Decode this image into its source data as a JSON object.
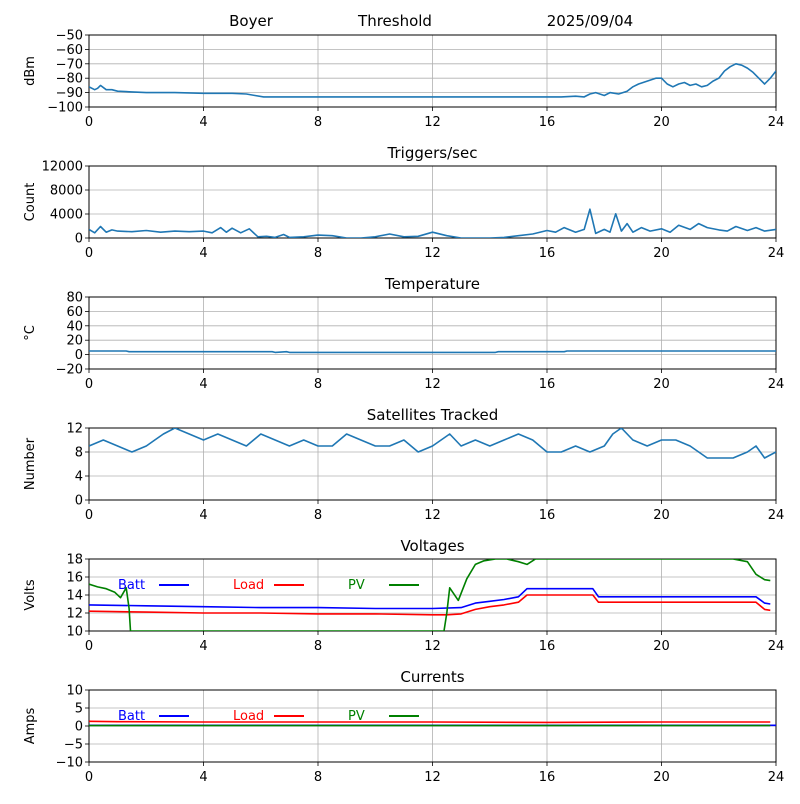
{
  "header": {
    "station": "Boyer",
    "mode": "Threshold",
    "date": "2025/09/04"
  },
  "chart_data": [
    {
      "type": "line",
      "title": "",
      "ylabel": "dBm",
      "xlabel": "",
      "xlim": [
        0,
        24
      ],
      "ylim": [
        -100,
        -50
      ],
      "xticks": [
        "0",
        "4",
        "8",
        "12",
        "16",
        "20",
        "24"
      ],
      "yticks": [
        "−100",
        "−90",
        "−80",
        "−70",
        "−60",
        "−50"
      ],
      "grid": true,
      "series": [
        {
          "color": "#1f77b4",
          "x": [
            0,
            0.2,
            0.3,
            0.4,
            0.6,
            0.8,
            1,
            1.5,
            2,
            3,
            4,
            5,
            5.5,
            5.8,
            6.1,
            7,
            8,
            10,
            12,
            14,
            16,
            16.5,
            17,
            17.3,
            17.5,
            17.7,
            18,
            18.2,
            18.5,
            18.8,
            19,
            19.2,
            19.5,
            19.8,
            20,
            20.2,
            20.4,
            20.6,
            20.8,
            21,
            21.2,
            21.4,
            21.6,
            21.8,
            22,
            22.2,
            22.4,
            22.6,
            22.8,
            23,
            23.2,
            23.4,
            23.6,
            23.8,
            24
          ],
          "y": [
            -86,
            -88,
            -87,
            -85,
            -88,
            -88,
            -89,
            -89.5,
            -90,
            -90,
            -90.5,
            -90.5,
            -91,
            -92,
            -93,
            -93,
            -93,
            -93,
            -93,
            -93,
            -93,
            -93,
            -92.5,
            -93,
            -91,
            -90,
            -92,
            -90,
            -91,
            -89,
            -86,
            -84,
            -82,
            -80,
            -80,
            -84,
            -86,
            -84,
            -83,
            -85,
            -84,
            -86,
            -85,
            -82,
            -80,
            -75,
            -72,
            -70,
            -71,
            -73,
            -76,
            -80,
            -84,
            -80,
            -75
          ]
        }
      ]
    },
    {
      "type": "line",
      "title": "Triggers/sec",
      "ylabel": "Count",
      "xlabel": "",
      "xlim": [
        0,
        24
      ],
      "ylim": [
        0,
        12500
      ],
      "xticks": [
        "0",
        "4",
        "8",
        "12",
        "16",
        "20",
        "24"
      ],
      "yticks": [
        "0",
        "4000",
        "8000",
        "12000"
      ],
      "grid": true,
      "series": [
        {
          "color": "#1f77b4",
          "x": [
            0,
            0.2,
            0.4,
            0.6,
            0.8,
            1,
            1.5,
            2,
            2.5,
            3,
            3.5,
            4,
            4.3,
            4.6,
            4.8,
            5,
            5.3,
            5.6,
            5.9,
            6.2,
            6.5,
            6.8,
            7,
            7.5,
            8,
            8.5,
            9,
            9.5,
            10,
            10.5,
            11,
            11.5,
            12,
            12.5,
            13,
            13.5,
            14,
            14.5,
            15,
            15.5,
            16,
            16.3,
            16.6,
            17,
            17.3,
            17.5,
            17.7,
            18,
            18.2,
            18.4,
            18.6,
            18.8,
            19,
            19.3,
            19.6,
            20,
            20.3,
            20.6,
            21,
            21.3,
            21.6,
            22,
            22.3,
            22.6,
            23,
            23.3,
            23.6,
            24
          ],
          "y": [
            1500,
            900,
            2000,
            1000,
            1400,
            1200,
            1100,
            1300,
            1000,
            1200,
            1100,
            1200,
            900,
            1800,
            1000,
            1700,
            900,
            1600,
            200,
            300,
            100,
            600,
            100,
            200,
            500,
            400,
            0,
            0,
            200,
            700,
            200,
            300,
            1000,
            400,
            0,
            0,
            0,
            100,
            400,
            700,
            1300,
            1000,
            1800,
            1000,
            1500,
            5000,
            800,
            1500,
            1000,
            4200,
            1200,
            2500,
            1000,
            1800,
            1200,
            1600,
            1000,
            2200,
            1500,
            2500,
            1800,
            1400,
            1200,
            2000,
            1300,
            1800,
            1200,
            1500
          ]
        }
      ]
    },
    {
      "type": "line",
      "title": "Temperature",
      "ylabel": "°C",
      "xlabel": "",
      "xlim": [
        0,
        24
      ],
      "ylim": [
        -20,
        80
      ],
      "xticks": [
        "0",
        "4",
        "8",
        "12",
        "16",
        "20",
        "24"
      ],
      "yticks": [
        "−20",
        "0",
        "20",
        "40",
        "60",
        "80"
      ],
      "grid": true,
      "series": [
        {
          "color": "#1f77b4",
          "x": [
            0,
            1.3,
            1.4,
            6.4,
            6.5,
            6.9,
            7,
            14.2,
            14.3,
            16.6,
            16.7,
            24
          ],
          "y": [
            5,
            5,
            4,
            4,
            3,
            4,
            3,
            3,
            4,
            4,
            5,
            5
          ]
        }
      ]
    },
    {
      "type": "line",
      "title": "Satellites Tracked",
      "ylabel": "Number",
      "xlabel": "",
      "xlim": [
        0,
        24
      ],
      "ylim": [
        0,
        12
      ],
      "xticks": [
        "0",
        "4",
        "8",
        "12",
        "16",
        "20",
        "24"
      ],
      "yticks": [
        "0",
        "4",
        "8",
        "12"
      ],
      "grid": true,
      "series": [
        {
          "color": "#1f77b4",
          "x": [
            0,
            0.5,
            1,
            1.5,
            2,
            2.3,
            2.6,
            3,
            3.5,
            4,
            4.5,
            5,
            5.5,
            6,
            6.5,
            7,
            7.5,
            8,
            8.5,
            9,
            9.5,
            10,
            10.5,
            11,
            11.5,
            12,
            12.3,
            12.6,
            13,
            13.5,
            14,
            14.5,
            15,
            15.5,
            16,
            16.5,
            17,
            17.5,
            18,
            18.3,
            18.6,
            19,
            19.5,
            20,
            20.5,
            21,
            21.3,
            21.6,
            22,
            22.5,
            23,
            23.3,
            23.6,
            24
          ],
          "y": [
            9,
            10,
            9,
            8,
            9,
            10,
            11,
            12,
            11,
            10,
            11,
            10,
            9,
            11,
            10,
            9,
            10,
            9,
            9,
            11,
            10,
            9,
            9,
            10,
            8,
            9,
            10,
            11,
            9,
            10,
            9,
            10,
            11,
            10,
            8,
            8,
            9,
            8,
            9,
            11,
            12,
            10,
            9,
            10,
            10,
            9,
            8,
            7,
            7,
            7,
            8,
            9,
            7,
            8
          ]
        }
      ]
    },
    {
      "type": "line",
      "title": "Voltages",
      "ylabel": "Volts",
      "xlabel": "",
      "xlim": [
        0,
        24
      ],
      "ylim": [
        10,
        18
      ],
      "xticks": [
        "0",
        "4",
        "8",
        "12",
        "16",
        "20",
        "24"
      ],
      "yticks": [
        "10",
        "12",
        "14",
        "16",
        "18"
      ],
      "grid": true,
      "legend": "top-left",
      "series": [
        {
          "name": "Batt",
          "color": "#0000ff",
          "x": [
            0,
            2,
            4,
            6,
            8,
            10,
            12,
            13,
            13.5,
            14,
            14.5,
            15,
            15.3,
            15.6,
            16,
            16.5,
            17,
            17.6,
            17.8,
            18,
            20,
            22,
            23,
            23.3,
            23.6,
            23.8
          ],
          "y": [
            12.9,
            12.8,
            12.7,
            12.6,
            12.6,
            12.5,
            12.5,
            12.6,
            13.1,
            13.3,
            13.5,
            13.8,
            14.7,
            14.7,
            14.7,
            14.7,
            14.7,
            14.7,
            13.8,
            13.8,
            13.8,
            13.8,
            13.8,
            13.8,
            13.1,
            13.0
          ]
        },
        {
          "name": "Load",
          "color": "#ff0000",
          "x": [
            0,
            2,
            4,
            6,
            8,
            10,
            12,
            12.5,
            13,
            13.5,
            14,
            14.5,
            15,
            15.3,
            15.6,
            16,
            16.5,
            17,
            17.6,
            17.8,
            18,
            20,
            22,
            23,
            23.3,
            23.6,
            23.8
          ],
          "y": [
            12.2,
            12.1,
            12.0,
            12.0,
            11.9,
            11.9,
            11.8,
            11.8,
            11.9,
            12.4,
            12.7,
            12.9,
            13.2,
            14.0,
            14.0,
            14.0,
            14.0,
            14.0,
            14.0,
            13.2,
            13.2,
            13.2,
            13.2,
            13.2,
            13.2,
            12.4,
            12.3
          ]
        },
        {
          "name": "PV",
          "color": "#008000",
          "x": [
            0,
            0.3,
            0.6,
            0.9,
            1.1,
            1.3,
            1.4,
            1.45,
            12.4,
            12.5,
            12.6,
            12.9,
            13.2,
            13.5,
            13.8,
            14.2,
            14.6,
            15.0,
            15.3,
            15.6,
            22.0,
            22.5,
            23.0,
            23.3,
            23.6,
            23.8
          ],
          "y": [
            15.2,
            14.9,
            14.7,
            14.3,
            13.7,
            14.8,
            12.5,
            10,
            10,
            12.0,
            14.8,
            13.4,
            15.8,
            17.4,
            17.8,
            18,
            18,
            17.7,
            17.4,
            18,
            18,
            18,
            17.7,
            16.3,
            15.7,
            15.6
          ]
        }
      ]
    },
    {
      "type": "line",
      "title": "Currents",
      "ylabel": "Amps",
      "xlabel": "",
      "xlim": [
        0,
        24
      ],
      "ylim": [
        -10,
        10
      ],
      "xticks": [
        "0",
        "4",
        "8",
        "12",
        "16",
        "20",
        "24"
      ],
      "yticks": [
        "−10",
        "−5",
        "0",
        "5",
        "10"
      ],
      "grid": true,
      "legend": "top-left",
      "series": [
        {
          "name": "Batt",
          "color": "#0000ff",
          "x": [
            0,
            24
          ],
          "y": [
            0.2,
            0.2
          ]
        },
        {
          "name": "Load",
          "color": "#ff0000",
          "x": [
            0,
            1,
            4,
            8,
            12,
            16,
            20,
            23.8
          ],
          "y": [
            1.3,
            1.2,
            1.1,
            1.1,
            1.1,
            1.0,
            1.1,
            1.1
          ]
        },
        {
          "name": "PV",
          "color": "#008000",
          "x": [
            0,
            23.8
          ],
          "y": [
            0.1,
            0.1
          ]
        }
      ]
    }
  ]
}
